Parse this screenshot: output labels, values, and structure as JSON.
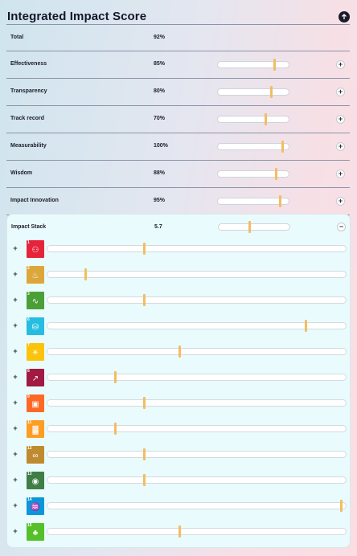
{
  "header": {
    "title": "Integrated Impact Score",
    "collapse_icon": "arrow-up-icon"
  },
  "total": {
    "label": "Total",
    "value": "92%"
  },
  "metrics": [
    {
      "label": "Effectiveness",
      "value": "85%",
      "level": 0.85
    },
    {
      "label": "Transparency",
      "value": "80%",
      "level": 0.8
    },
    {
      "label": "Track record",
      "value": "70%",
      "level": 0.7
    },
    {
      "label": "Measurability",
      "value": "100%",
      "level": 1.0
    },
    {
      "label": "Wisdom",
      "value": "88%",
      "level": 0.88
    },
    {
      "label": "Impact Innovation",
      "value": "95%",
      "level": 0.95
    }
  ],
  "impact_stack": {
    "label": "Impact Stack",
    "value": "5.7",
    "level": 0.4
  },
  "sdgs": [
    {
      "number": "1",
      "icon": "people-icon",
      "color": "#e5243b",
      "level": 0.33
    },
    {
      "number": "2",
      "icon": "bowl-icon",
      "color": "#dda63a",
      "level": 0.13
    },
    {
      "number": "3",
      "icon": "heartbeat-icon",
      "color": "#4c9f38",
      "level": 0.33
    },
    {
      "number": "6",
      "icon": "water-icon",
      "color": "#26bde2",
      "level": 0.88
    },
    {
      "number": "7",
      "icon": "sun-icon",
      "color": "#fcc30b",
      "level": 0.45
    },
    {
      "number": "8",
      "icon": "growth-chart-icon",
      "color": "#a21942",
      "level": 0.23
    },
    {
      "number": "9",
      "icon": "cubes-icon",
      "color": "#fd6925",
      "level": 0.33
    },
    {
      "number": "11",
      "icon": "city-icon",
      "color": "#fd9d24",
      "level": 0.23
    },
    {
      "number": "12",
      "icon": "infinity-icon",
      "color": "#bf8b2e",
      "level": 0.33
    },
    {
      "number": "13",
      "icon": "eye-globe-icon",
      "color": "#3f7e44",
      "level": 0.33
    },
    {
      "number": "14",
      "icon": "fish-icon",
      "color": "#0a97d9",
      "level": 1.0
    },
    {
      "number": "15",
      "icon": "tree-icon",
      "color": "#56c02b",
      "level": 0.45
    }
  ]
}
